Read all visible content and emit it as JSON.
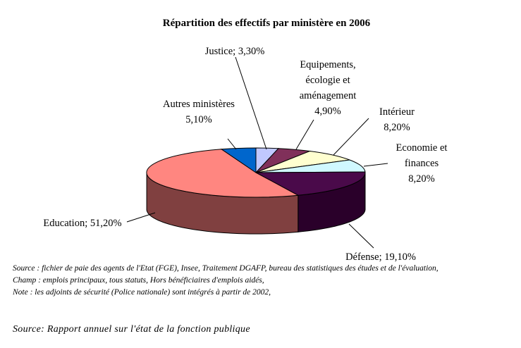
{
  "chart_data": {
    "type": "pie",
    "title": "Répartition des effectifs par ministère en 2006",
    "slices": [
      {
        "name": "Justice",
        "value": 3.3,
        "color": "#C0C8FF",
        "side_color": "#7F86B8",
        "label_lines": [
          "Justice; 3,30%"
        ]
      },
      {
        "name": "Equipements, écologie et aménagement",
        "value": 4.9,
        "color": "#80305A",
        "side_color": "#4E1433",
        "label_lines": [
          "Equipements,",
          "écologie et",
          "aménagement",
          "4,90%"
        ]
      },
      {
        "name": "Intérieur",
        "value": 8.2,
        "color": "#FFFFD0",
        "side_color": "#B7B78E",
        "label_lines": [
          "Intérieur",
          "8,20%"
        ]
      },
      {
        "name": "Economie et finances",
        "value": 8.2,
        "color": "#D0F8FF",
        "side_color": "#8FB4BC",
        "label_lines": [
          "Economie et",
          "finances",
          "8,20%"
        ]
      },
      {
        "name": "Défense",
        "value": 19.1,
        "color": "#4A0A4A",
        "side_color": "#2A002A",
        "label_lines": [
          "Défense; 19,10%"
        ]
      },
      {
        "name": "Education",
        "value": 51.2,
        "color": "#FF8680",
        "side_color": "#804040",
        "label_lines": [
          "Education; 51,20%"
        ]
      },
      {
        "name": "Autres ministères",
        "value": 5.1,
        "color": "#0066CC",
        "side_color": "#003A7A",
        "label_lines": [
          "Autres ministères",
          "5,10%"
        ]
      }
    ]
  },
  "notes": {
    "source_line": "Source : fichier de paie des agents de l'Etat (FGE), Insee, Traitement DGAFP, bureau des statistiques des études et de l'évaluation,",
    "champ_line": "Champ : emplois principaux, tous statuts, Hors bénéficiaires d'emplois aidés,",
    "note_line": "Note : les adjoints de sécurité (Police nationale) sont intégrés à partir de 2002,"
  },
  "footer": {
    "source": "Source: Rapport annuel sur l'état de la fonction publique"
  }
}
